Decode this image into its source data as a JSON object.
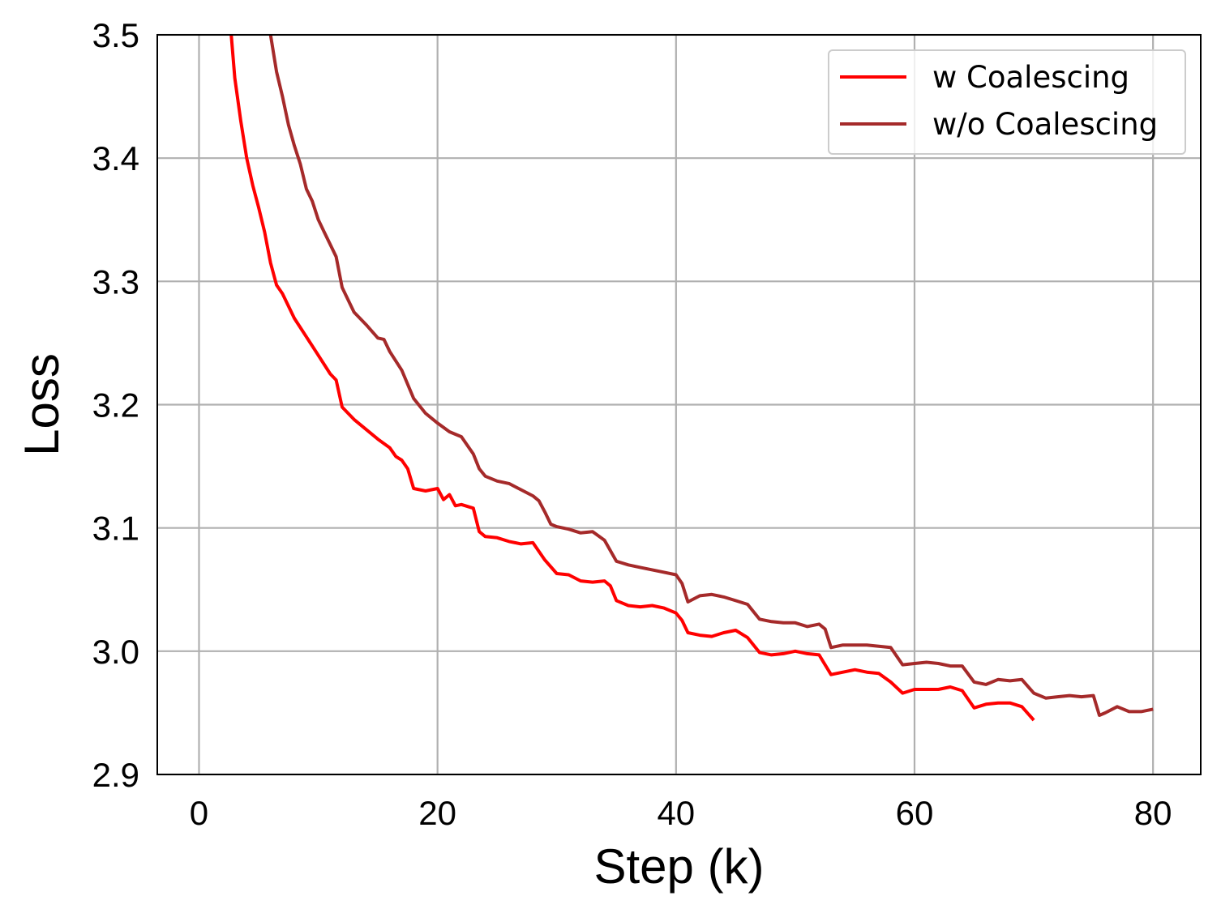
{
  "chart_data": {
    "type": "line",
    "title": "",
    "xlabel": "Step (k)",
    "ylabel": "Loss",
    "xlim": [
      -3.5,
      84
    ],
    "ylim": [
      2.9,
      3.5
    ],
    "xticks": [
      0,
      20,
      40,
      60,
      80
    ],
    "xtick_labels": [
      "0",
      "20",
      "40",
      "60",
      "80"
    ],
    "yticks": [
      2.9,
      3.0,
      3.1,
      3.2,
      3.3,
      3.4,
      3.5
    ],
    "ytick_labels": [
      "2.9",
      "3.0",
      "3.1",
      "3.2",
      "3.3",
      "3.4",
      "3.5"
    ],
    "grid": true,
    "legend_position": "top-right",
    "series": [
      {
        "name": "w Coalescing",
        "color": "#ff0000",
        "x": [
          2.7,
          3.0,
          3.5,
          4.0,
          4.5,
          5.0,
          5.5,
          6.0,
          6.5,
          7.0,
          8.0,
          9.0,
          10.0,
          11.0,
          11.5,
          12.0,
          13.0,
          14.0,
          15.0,
          16.0,
          16.5,
          17.0,
          17.5,
          18.0,
          19.0,
          20.0,
          20.5,
          21.0,
          21.5,
          22.0,
          23.0,
          23.5,
          24.0,
          25.0,
          26.0,
          27.0,
          28.0,
          29.0,
          30.0,
          31.0,
          32.0,
          33.0,
          34.0,
          34.5,
          35.0,
          36.0,
          37.0,
          38.0,
          39.0,
          40.0,
          40.5,
          41.0,
          42.0,
          43.0,
          44.0,
          45.0,
          46.0,
          47.0,
          48.0,
          49.0,
          50.0,
          51.0,
          52.0,
          53.0,
          54.0,
          55.0,
          56.0,
          57.0,
          58.0,
          59.0,
          60.0,
          61.0,
          62.0,
          63.0,
          64.0,
          65.0,
          66.0,
          67.0,
          68.0,
          69.0,
          70.0
        ],
        "y": [
          3.5,
          3.465,
          3.43,
          3.4,
          3.378,
          3.36,
          3.34,
          3.315,
          3.297,
          3.29,
          3.27,
          3.255,
          3.24,
          3.225,
          3.22,
          3.198,
          3.188,
          3.18,
          3.172,
          3.165,
          3.158,
          3.155,
          3.148,
          3.132,
          3.13,
          3.132,
          3.123,
          3.127,
          3.118,
          3.119,
          3.116,
          3.097,
          3.093,
          3.092,
          3.089,
          3.087,
          3.088,
          3.074,
          3.063,
          3.062,
          3.057,
          3.056,
          3.057,
          3.053,
          3.041,
          3.037,
          3.036,
          3.037,
          3.035,
          3.031,
          3.025,
          3.015,
          3.013,
          3.012,
          3.015,
          3.017,
          3.011,
          2.999,
          2.997,
          2.998,
          3.0,
          2.998,
          2.997,
          2.981,
          2.983,
          2.985,
          2.983,
          2.982,
          2.975,
          2.966,
          2.969,
          2.969,
          2.969,
          2.971,
          2.968,
          2.954,
          2.957,
          2.958,
          2.958,
          2.955,
          2.944
        ]
      },
      {
        "name": "w/o Coalescing",
        "color": "#a52a2a",
        "x": [
          6.0,
          6.5,
          7.0,
          7.5,
          8.0,
          8.5,
          9.0,
          9.5,
          10.0,
          10.5,
          11.0,
          11.5,
          12.0,
          13.0,
          14.0,
          15.0,
          15.5,
          16.0,
          17.0,
          18.0,
          19.0,
          20.0,
          21.0,
          22.0,
          23.0,
          23.5,
          24.0,
          25.0,
          26.0,
          27.0,
          28.0,
          28.5,
          29.0,
          29.5,
          30.0,
          31.0,
          32.0,
          33.0,
          34.0,
          35.0,
          36.0,
          37.0,
          38.0,
          39.0,
          40.0,
          40.5,
          41.0,
          42.0,
          43.0,
          44.0,
          45.0,
          46.0,
          47.0,
          48.0,
          49.0,
          50.0,
          51.0,
          52.0,
          52.5,
          53.0,
          54.0,
          55.0,
          56.0,
          57.0,
          58.0,
          59.0,
          60.0,
          61.0,
          62.0,
          63.0,
          64.0,
          65.0,
          66.0,
          67.0,
          68.0,
          69.0,
          70.0,
          71.0,
          72.0,
          73.0,
          74.0,
          75.0,
          75.5,
          76.0,
          77.0,
          78.0,
          79.0,
          80.0
        ],
        "y": [
          3.5,
          3.47,
          3.45,
          3.427,
          3.41,
          3.395,
          3.375,
          3.365,
          3.35,
          3.34,
          3.33,
          3.32,
          3.295,
          3.275,
          3.265,
          3.254,
          3.253,
          3.243,
          3.228,
          3.205,
          3.193,
          3.185,
          3.178,
          3.174,
          3.16,
          3.148,
          3.142,
          3.138,
          3.136,
          3.131,
          3.126,
          3.122,
          3.113,
          3.103,
          3.101,
          3.099,
          3.096,
          3.097,
          3.09,
          3.073,
          3.07,
          3.068,
          3.066,
          3.064,
          3.062,
          3.055,
          3.04,
          3.045,
          3.046,
          3.044,
          3.041,
          3.038,
          3.026,
          3.024,
          3.023,
          3.023,
          3.02,
          3.022,
          3.018,
          3.003,
          3.005,
          3.005,
          3.005,
          3.004,
          3.003,
          2.989,
          2.99,
          2.991,
          2.99,
          2.988,
          2.988,
          2.975,
          2.973,
          2.977,
          2.976,
          2.977,
          2.966,
          2.962,
          2.963,
          2.964,
          2.963,
          2.964,
          2.948,
          2.95,
          2.955,
          2.951,
          2.951,
          2.953
        ]
      }
    ]
  }
}
